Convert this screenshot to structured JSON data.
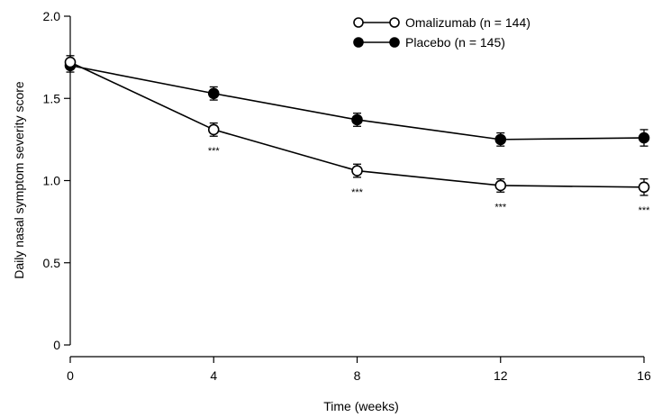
{
  "chart_data": {
    "type": "line",
    "xlabel": "Time (weeks)",
    "ylabel": "Daily nasal symptom severity score",
    "xlim": [
      0,
      16
    ],
    "ylim": [
      0,
      2.0
    ],
    "x_ticks": [
      0,
      4,
      8,
      12,
      16
    ],
    "x_tick_labels": [
      "0",
      "4",
      "8",
      "12",
      "16"
    ],
    "y_ticks": [
      0,
      0.5,
      1.0,
      1.5,
      2.0
    ],
    "y_tick_labels": [
      "0",
      "0.5",
      "1.0",
      "1.5",
      "2.0"
    ],
    "grid": false,
    "legend_position": "top-right",
    "x": [
      0,
      4,
      8,
      12,
      16
    ],
    "series": [
      {
        "name": "Omalizumab (n = 144)",
        "marker": "open-circle",
        "values": [
          1.72,
          1.31,
          1.06,
          0.97,
          0.96
        ],
        "errors": [
          0.04,
          0.04,
          0.04,
          0.04,
          0.05
        ]
      },
      {
        "name": "Placebo (n = 145)",
        "marker": "filled-circle",
        "values": [
          1.7,
          1.53,
          1.37,
          1.25,
          1.26
        ],
        "errors": [
          0.04,
          0.04,
          0.04,
          0.04,
          0.05
        ]
      }
    ],
    "annotations": [
      {
        "x": 4,
        "text": "***"
      },
      {
        "x": 8,
        "text": "***"
      },
      {
        "x": 12,
        "text": "***"
      },
      {
        "x": 16,
        "text": "***"
      }
    ]
  }
}
